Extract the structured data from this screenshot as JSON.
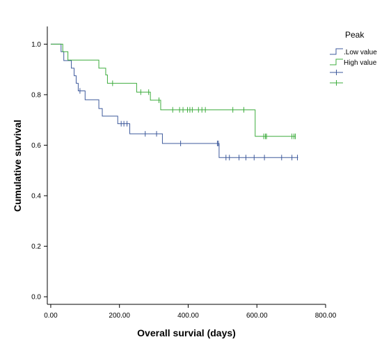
{
  "chart_data": {
    "type": "line",
    "subtype": "kaplan-meier",
    "title": "",
    "xlabel": "Overall survial (days)",
    "ylabel": "Cumulative survival",
    "xlim": [
      -10,
      800
    ],
    "ylim": [
      -0.03,
      1.07
    ],
    "xticks": [
      0,
      200,
      400,
      600,
      800
    ],
    "xtick_labels": [
      "0.00",
      "200.00",
      "400.00",
      "600.00",
      "800.00"
    ],
    "yticks": [
      0.0,
      0.2,
      0.4,
      0.6,
      0.8,
      1.0
    ],
    "ytick_labels": [
      "0.0",
      "0.2",
      "0.4",
      "0.6",
      "0.8",
      "1.0"
    ],
    "grid": false,
    "legend": {
      "title": "Peak",
      "placement": "right",
      "entries": [
        {
          "label": ".Low value",
          "kind": "line",
          "color": "#3e5a9c"
        },
        {
          "label": "High value",
          "kind": "line",
          "color": "#3cac3c"
        },
        {
          "label": "",
          "kind": "censor",
          "color": "#3e5a9c"
        },
        {
          "label": "",
          "kind": "censor",
          "color": "#3cac3c"
        }
      ]
    },
    "series": [
      {
        "name": ".Low value",
        "color": "#3e5a9c",
        "steps": [
          [
            0,
            1.0
          ],
          [
            30,
            0.97
          ],
          [
            38,
            0.935
          ],
          [
            60,
            0.905
          ],
          [
            68,
            0.875
          ],
          [
            74,
            0.845
          ],
          [
            80,
            0.815
          ],
          [
            100,
            0.78
          ],
          [
            140,
            0.745
          ],
          [
            150,
            0.715
          ],
          [
            195,
            0.685
          ],
          [
            230,
            0.645
          ],
          [
            325,
            0.607
          ],
          [
            490,
            0.551
          ]
        ],
        "end_x": 720,
        "censors": [
          [
            85,
            0.815
          ],
          [
            205,
            0.685
          ],
          [
            213,
            0.685
          ],
          [
            222,
            0.685
          ],
          [
            275,
            0.645
          ],
          [
            308,
            0.645
          ],
          [
            378,
            0.607
          ],
          [
            485,
            0.607
          ],
          [
            488,
            0.607
          ],
          [
            510,
            0.551
          ],
          [
            520,
            0.551
          ],
          [
            548,
            0.551
          ],
          [
            568,
            0.551
          ],
          [
            592,
            0.551
          ],
          [
            622,
            0.551
          ],
          [
            672,
            0.551
          ],
          [
            702,
            0.551
          ],
          [
            718,
            0.551
          ]
        ]
      },
      {
        "name": "High value",
        "color": "#3cac3c",
        "steps": [
          [
            0,
            1.0
          ],
          [
            35,
            0.97
          ],
          [
            50,
            0.937
          ],
          [
            140,
            0.905
          ],
          [
            160,
            0.878
          ],
          [
            165,
            0.845
          ],
          [
            250,
            0.81
          ],
          [
            290,
            0.778
          ],
          [
            320,
            0.74
          ],
          [
            595,
            0.635
          ]
        ],
        "end_x": 712,
        "censors": [
          [
            180,
            0.845
          ],
          [
            262,
            0.81
          ],
          [
            285,
            0.81
          ],
          [
            315,
            0.778
          ],
          [
            355,
            0.74
          ],
          [
            375,
            0.74
          ],
          [
            385,
            0.74
          ],
          [
            398,
            0.74
          ],
          [
            405,
            0.74
          ],
          [
            412,
            0.74
          ],
          [
            430,
            0.74
          ],
          [
            440,
            0.74
          ],
          [
            450,
            0.74
          ],
          [
            530,
            0.74
          ],
          [
            562,
            0.74
          ],
          [
            620,
            0.635
          ],
          [
            625,
            0.635
          ],
          [
            628,
            0.635
          ],
          [
            702,
            0.635
          ],
          [
            708,
            0.635
          ],
          [
            712,
            0.635
          ]
        ]
      }
    ]
  }
}
